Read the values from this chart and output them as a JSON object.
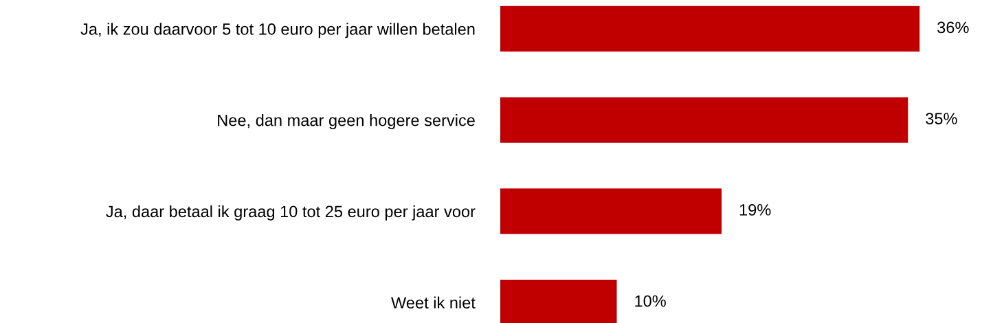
{
  "chart_data": {
    "type": "bar",
    "orientation": "horizontal",
    "categories": [
      "Ja, ik zou daarvoor 5 tot 10 euro per jaar willen betalen",
      "Nee, dan maar geen hogere service",
      "Ja, daar betaal ik graag 10 tot 25 euro per jaar voor",
      "Weet ik niet"
    ],
    "values": [
      36,
      35,
      19,
      10
    ],
    "value_labels": [
      "36%",
      "35%",
      "19%",
      "10%"
    ],
    "color": "#c00000",
    "grid": false,
    "tick_labels": "y"
  }
}
